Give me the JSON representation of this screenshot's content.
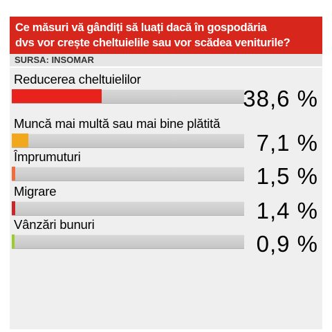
{
  "header": {
    "title_line1": "Ce măsuri vă gândiți să luați dacă în gospodăria",
    "title_line2": "dvs vor crește cheltuielile sau vor scădea veniturile?"
  },
  "source": "SURSA: INSOMAR",
  "colors": {
    "header_bg": "#d7261c",
    "bar_track": "#d0d0d0",
    "panel_bg": "#efefef"
  },
  "chart_data": {
    "type": "bar",
    "orientation": "horizontal",
    "title": "Ce măsuri vă gândiți să luați dacă în gospodăria dvs vor crește cheltuielile sau vor scădea veniturile?",
    "source": "SURSA: INSOMAR",
    "unit": "%",
    "xlim": [
      0,
      100
    ],
    "categories": [
      "Reducerea cheltuielilor",
      "Muncă mai multă sau mai bine plătită",
      "Împrumuturi",
      "Migrare",
      "Vânzări bunuri"
    ],
    "values": [
      38.6,
      7.1,
      1.5,
      1.4,
      0.9
    ],
    "value_labels": [
      "38,6 %",
      "7,1 %",
      "1,5 %",
      "1,4 %",
      "0,9 %"
    ],
    "bar_colors": [
      "#e8231b",
      "#f2a81d",
      "#f26b3c",
      "#c8282a",
      "#9ccc2c"
    ]
  }
}
